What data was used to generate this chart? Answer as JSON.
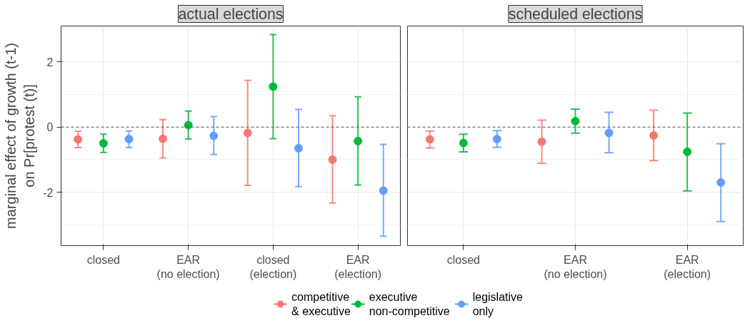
{
  "chart_data": [
    {
      "type": "scatter",
      "title": "actual elections",
      "ylabel": "marginal effect of growth (t-1)\non Pr[protest (t)]",
      "categories": [
        "closed",
        "EAR\n(no election)",
        "closed\n(election)",
        "EAR\n(election)"
      ],
      "ylim": [
        -3.64,
        3.1
      ],
      "yticks": [
        -2,
        0,
        2
      ],
      "grid": true,
      "marker": "circle",
      "legend": "bottom",
      "ref_lines": [
        {
          "axis": "y",
          "value": 0,
          "color": "#555555",
          "line_style": "dashed"
        }
      ],
      "series": [
        {
          "name": "competitive\n& executive",
          "color": "#f8766d",
          "values": [
            -0.38,
            -0.36,
            -0.18,
            -1.0
          ],
          "errors": [
            [
              -0.63,
              -0.13
            ],
            [
              -0.95,
              0.23
            ],
            [
              -1.79,
              1.43
            ],
            [
              -2.33,
              0.35
            ]
          ]
        },
        {
          "name": "executive\nnon-competitive",
          "color": "#00ba38",
          "values": [
            -0.5,
            0.06,
            1.24,
            -0.43
          ],
          "errors": [
            [
              -0.78,
              -0.22
            ],
            [
              -0.37,
              0.49
            ],
            [
              -0.36,
              2.84
            ],
            [
              -1.78,
              0.93
            ]
          ]
        },
        {
          "name": "legislative\nonly",
          "color": "#619cff",
          "values": [
            -0.37,
            -0.27,
            -0.65,
            -1.95
          ],
          "errors": [
            [
              -0.63,
              -0.12
            ],
            [
              -0.84,
              0.32
            ],
            [
              -1.83,
              0.54
            ],
            [
              -3.35,
              -0.53
            ]
          ]
        }
      ]
    },
    {
      "type": "scatter",
      "title": "scheduled elections",
      "categories": [
        "closed",
        "EAR\n(no election)",
        "EAR\n(election)"
      ],
      "ylim": [
        -3.64,
        3.1
      ],
      "yticks": [
        -2,
        0,
        2
      ],
      "grid": true,
      "marker": "circle",
      "tick_labels": "x",
      "ref_lines": [
        {
          "axis": "y",
          "value": 0,
          "color": "#555555",
          "line_style": "dashed"
        }
      ],
      "series": [
        {
          "color": "#f8766d",
          "values": [
            -0.38,
            -0.45,
            -0.26
          ],
          "errors": [
            [
              -0.64,
              -0.12
            ],
            [
              -1.11,
              0.21
            ],
            [
              -1.03,
              0.52
            ]
          ]
        },
        {
          "color": "#00ba38",
          "values": [
            -0.49,
            0.18,
            -0.76
          ],
          "errors": [
            [
              -0.76,
              -0.22
            ],
            [
              -0.19,
              0.55
            ],
            [
              -1.96,
              0.43
            ]
          ]
        },
        {
          "color": "#619cff",
          "values": [
            -0.37,
            -0.18,
            -1.7
          ],
          "errors": [
            [
              -0.62,
              -0.11
            ],
            [
              -0.79,
              0.45
            ],
            [
              -2.9,
              -0.51
            ]
          ]
        }
      ]
    }
  ]
}
